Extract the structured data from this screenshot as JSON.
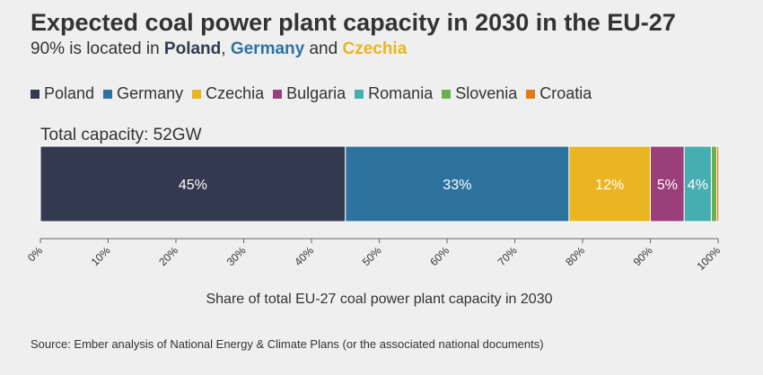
{
  "title": "Expected coal power plant capacity in 2030 in the EU-27",
  "subtitle": {
    "prefix": "90% is located in ",
    "country1": "Poland",
    "sep1": ", ",
    "country2": "Germany",
    "sep2": " and ",
    "country3": "Czechia",
    "color1": "#333a4f",
    "color2": "#2e73a0",
    "color3": "#ebb521"
  },
  "total_label": "Total capacity: 52GW",
  "source": "Source: Ember analysis of National Energy & Climate Plans (or the associated national documents)",
  "chart_data": {
    "type": "bar",
    "orientation": "horizontal-stacked",
    "series": [
      {
        "name": "Poland",
        "value": 45,
        "label": "45%",
        "color": "#333a4f"
      },
      {
        "name": "Germany",
        "value": 33,
        "label": "33%",
        "color": "#2e73a0"
      },
      {
        "name": "Czechia",
        "value": 12,
        "label": "12%",
        "color": "#ebb521"
      },
      {
        "name": "Bulgaria",
        "value": 5,
        "label": "5%",
        "color": "#9b3f7a"
      },
      {
        "name": "Romania",
        "value": 4,
        "label": "4%",
        "color": "#46adb0"
      },
      {
        "name": "Slovenia",
        "value": 0.8,
        "label": "",
        "color": "#6ab04c"
      },
      {
        "name": "Croatia",
        "value": 0.3,
        "label": "",
        "color": "#e07b18"
      }
    ],
    "xlim": [
      0,
      100
    ],
    "ticks": [
      "0%",
      "10%",
      "20%",
      "30%",
      "40%",
      "50%",
      "60%",
      "70%",
      "80%",
      "90%",
      "100%"
    ],
    "xlabel": "Share of total EU-27 coal power plant capacity in 2030",
    "legend_position": "top"
  }
}
